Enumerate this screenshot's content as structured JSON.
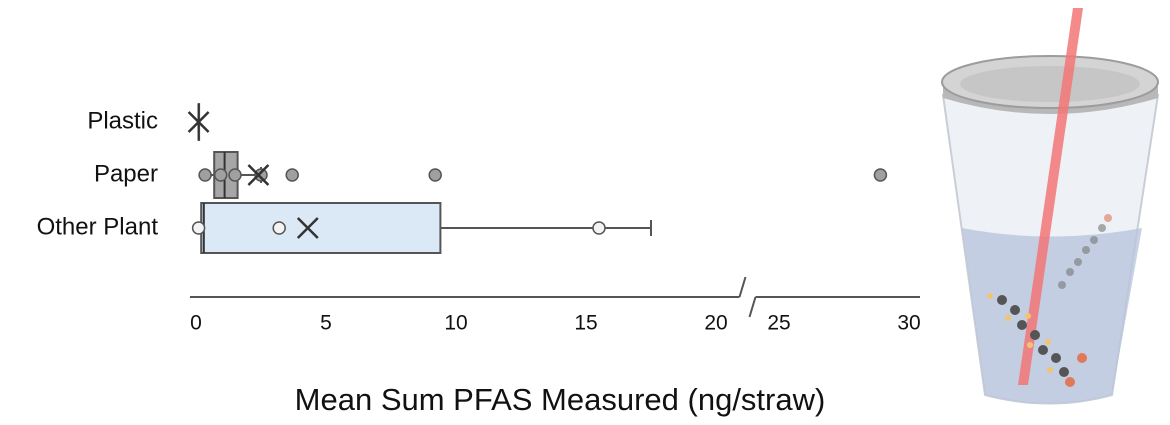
{
  "chart_data": {
    "type": "box",
    "xlabel": "Mean Sum PFAS Measured  (ng/straw)",
    "categories": [
      "Plastic",
      "Paper",
      "Other Plant"
    ],
    "boxes": [
      {
        "min": 0.1,
        "q1": 0.1,
        "median": 0.1,
        "q3": 0.1,
        "max": 0.1,
        "mean": 0.1,
        "points": [],
        "color": "#9a9a9a",
        "point_color": "#9a9a9a"
      },
      {
        "min": 0.3,
        "q1": 0.7,
        "median": 1.1,
        "q3": 1.6,
        "max": 2.5,
        "mean": 2.4,
        "points": [
          0.35,
          0.95,
          1.5,
          2.5,
          3.7,
          9.2,
          28.9
        ],
        "color": "#a6a6a6",
        "point_color": "#a0a0a0"
      },
      {
        "min": 0.1,
        "q1": 0.2,
        "median": 0.3,
        "q3": 9.4,
        "max": 17.5,
        "mean": 4.3,
        "points": [
          0.1,
          3.2,
          15.5
        ],
        "color": "#dbe9f6",
        "point_color": "#f4f4f4"
      }
    ],
    "xlim": [
      0,
      30.5
    ],
    "x_break": [
      20.5,
      24.5
    ],
    "xticks": [
      0,
      5,
      10,
      15,
      20,
      25,
      30
    ]
  }
}
